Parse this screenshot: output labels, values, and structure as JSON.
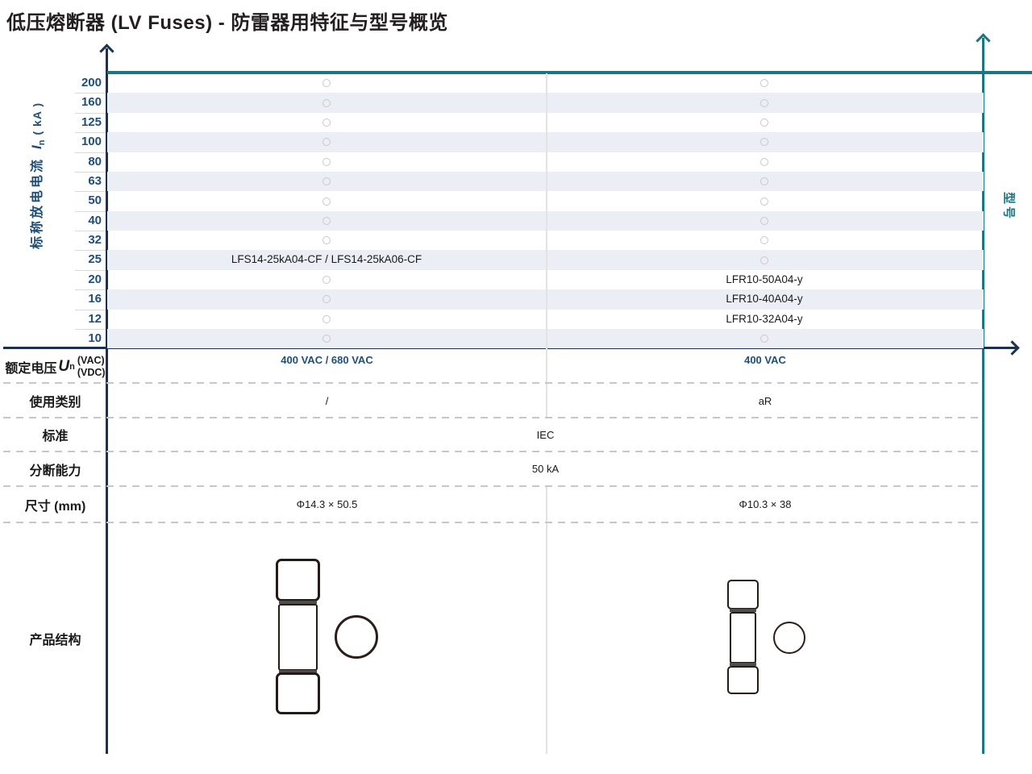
{
  "title": "低压熔断器 (LV Fuses) - 防雷器用特征与型号概览",
  "colors": {
    "navy_text": "#1f4e79",
    "axis_navy": "#1b3150",
    "teal": "#1e7481",
    "row_stripe": "#ebeef5",
    "model_text": "#1a1a1a"
  },
  "chart_data": {
    "type": "table",
    "title": "低压熔断器 (LV Fuses) - 防雷器用特征与型号概览",
    "y_axis": {
      "text": "标称放电电流",
      "symbol": "I",
      "symbol_sub": "n",
      "unit": "( kA )"
    },
    "right_axis_label": "型号",
    "categories": [
      "200",
      "160",
      "125",
      "100",
      "80",
      "63",
      "50",
      "40",
      "32",
      "25",
      "20",
      "16",
      "12",
      "10"
    ],
    "marker": "circle-outline",
    "columns": [
      {
        "name": "left-column",
        "models": {
          "25": "LFS14-25kA04-CF / LFS14-25kA06-CF"
        }
      },
      {
        "name": "right-column",
        "models": {
          "20": "LFR10-50A04-y",
          "16": "LFR10-40A04-y",
          "12": "LFR10-32A04-y"
        }
      }
    ]
  },
  "spec_table": {
    "rows": [
      {
        "label": "额定电压",
        "symbol": "U",
        "symbol_sub": "n",
        "unit_top": "(VAC)",
        "unit_bottom": "(VDC)",
        "left": "400 VAC / 680 VAC",
        "right": "400 VAC"
      },
      {
        "label": "使用类别",
        "left": "/",
        "right": "aR"
      },
      {
        "label": "标准",
        "center": "IEC"
      },
      {
        "label": "分断能力",
        "center": "50 kA"
      },
      {
        "label": "尺寸 (mm)",
        "left": "Φ14.3 × 50.5",
        "right": "Φ10.3 × 38"
      },
      {
        "label": "产品结构"
      }
    ]
  },
  "drawings": {
    "left_fuse_icon": "fuse-side-view-large",
    "left_endview_icon": "fuse-end-view-circle",
    "right_fuse_icon": "fuse-side-view-small",
    "right_endview_icon": "fuse-end-view-circle"
  }
}
